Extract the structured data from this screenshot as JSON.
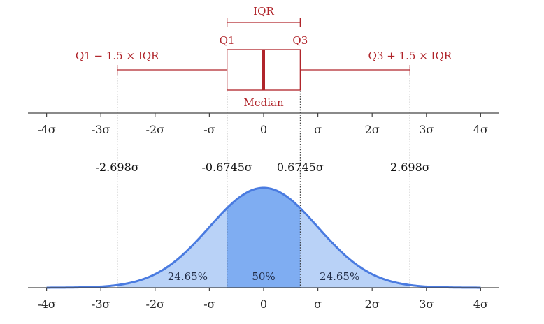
{
  "boxplot": {
    "iqr_label": "IQR",
    "q1_label": "Q1",
    "q3_label": "Q3",
    "lower_whisker_label": "Q1 − 1.5 × IQR",
    "upper_whisker_label": "Q3 + 1.5 × IQR",
    "median_label": "Median",
    "color": "#b0242a"
  },
  "axis": {
    "ticks": [
      {
        "value": -4,
        "label": "-4σ"
      },
      {
        "value": -3,
        "label": "-3σ"
      },
      {
        "value": -2,
        "label": "-2σ"
      },
      {
        "value": -1,
        "label": "-σ"
      },
      {
        "value": 0,
        "label": "0"
      },
      {
        "value": 1,
        "label": "σ"
      },
      {
        "value": 2,
        "label": "2σ"
      },
      {
        "value": 3,
        "label": "3σ"
      },
      {
        "value": 4,
        "label": "4σ"
      }
    ]
  },
  "markers": [
    {
      "value": -2.698,
      "label": "-2.698σ"
    },
    {
      "value": -0.6745,
      "label": "-0.6745σ"
    },
    {
      "value": 0.6745,
      "label": "0.6745σ"
    },
    {
      "value": 2.698,
      "label": "2.698σ"
    }
  ],
  "regions": [
    {
      "label": "24.65%",
      "from": -2.698,
      "to": -0.6745
    },
    {
      "label": "50%",
      "from": -0.6745,
      "to": 0.6745
    },
    {
      "label": "24.65%",
      "from": 0.6745,
      "to": 2.698
    }
  ],
  "colors": {
    "curve": "#4a7be0",
    "outer_fill": "#b9d2f7",
    "inner_fill": "#7fadf2",
    "axis": "#444444"
  }
}
